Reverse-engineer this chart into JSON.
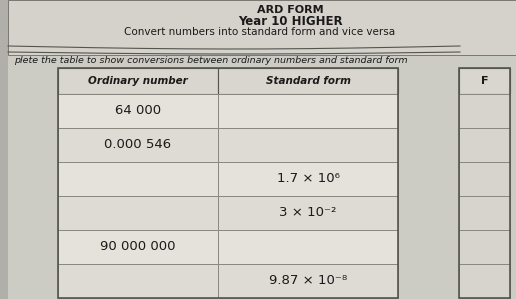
{
  "title_line1": "ARD FORM",
  "title_line2": "Year 10 HIGHER",
  "subtitle": "Convert numbers into standard form and vice versa",
  "instruction": "plete the table to show conversions between ordinary numbers and standard form",
  "col1_header": "Ordinary number",
  "col2_header": "Standard form",
  "f_label": "F",
  "rows": [
    {
      "ordinary": "64 000",
      "standard": ""
    },
    {
      "ordinary": "0.000 546",
      "standard": ""
    },
    {
      "ordinary": "",
      "standard": "1.7 × 10⁶"
    },
    {
      "ordinary": "",
      "standard": "3 × 10⁻²"
    },
    {
      "ordinary": "90 000 000",
      "standard": ""
    },
    {
      "ordinary": "",
      "standard": "9.87 × 10⁻⁸"
    }
  ],
  "bg_paper": "#cccbc4",
  "bg_title_area": "#d4d2cb",
  "bg_inner": "#c8c6bf",
  "cell_bg_light": "#dddbd4",
  "cell_bg_lighter": "#e4e2db",
  "header_bg": "#d8d6cf",
  "line_color": "#888880",
  "line_color_dark": "#555550",
  "text_color": "#1a1a1a",
  "f_bg": "#d6d4cd"
}
